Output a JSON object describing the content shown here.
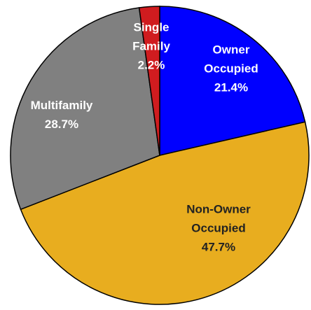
{
  "chart_data": {
    "type": "pie",
    "categories": [
      "Owner Occupied",
      "Non-Owner Occupied",
      "Multifamily",
      "Single Family"
    ],
    "values": [
      21.4,
      47.7,
      28.7,
      2.2
    ],
    "value_labels": [
      "21.4%",
      "47.7%",
      "28.7%",
      "2.2%"
    ],
    "colors": [
      "#0000ff",
      "#e8ad1f",
      "#808080",
      "#d01c1f"
    ]
  }
}
